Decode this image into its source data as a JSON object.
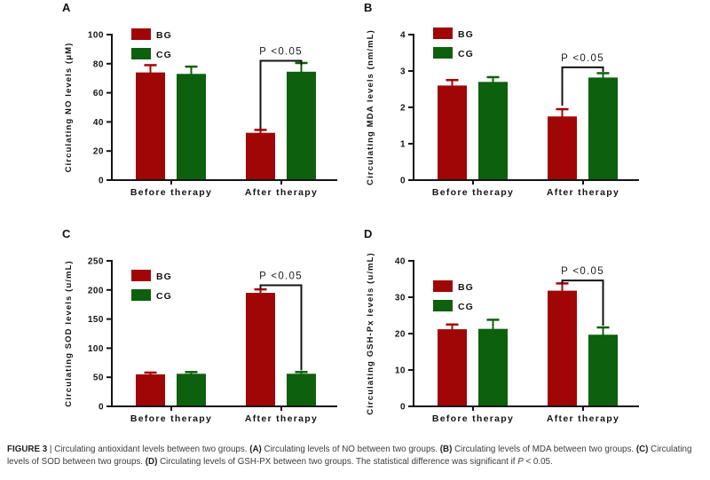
{
  "colors": {
    "bg_series": "#A00606",
    "cg_series": "#0D600D",
    "axis": "#141414"
  },
  "chart_data": [
    {
      "panel_letter": "A",
      "type": "bar",
      "title": "",
      "xlabel": "",
      "ylabel": "Circulating NO levels (μM)",
      "categories": [
        "Before therapy",
        "After therapy"
      ],
      "series": [
        {
          "name": "BG",
          "color": "#A00606",
          "values": [
            74,
            32.5
          ],
          "errors": [
            5,
            2
          ]
        },
        {
          "name": "CG",
          "color": "#0D600D",
          "values": [
            73,
            74.5
          ],
          "errors": [
            5,
            6
          ]
        }
      ],
      "ylim": [
        0,
        100
      ],
      "yticks": [
        0,
        20,
        40,
        60,
        80,
        100
      ],
      "grid": false,
      "legend_position": "top-left",
      "legend_y": 29,
      "significance": {
        "label": "P <0.05",
        "between": [
          "After therapy BG",
          "After therapy CG"
        ],
        "level": 82,
        "drop": 35,
        "side": "left"
      }
    },
    {
      "panel_letter": "B",
      "type": "bar",
      "title": "",
      "xlabel": "",
      "ylabel": "Circulating MDA levels (nm/mL)",
      "categories": [
        "Before therapy",
        "After therapy"
      ],
      "series": [
        {
          "name": "BG",
          "color": "#A00606",
          "values": [
            2.6,
            1.75
          ],
          "errors": [
            0.15,
            0.2
          ]
        },
        {
          "name": "CG",
          "color": "#0D600D",
          "values": [
            2.7,
            2.82
          ],
          "errors": [
            0.13,
            0.12
          ]
        }
      ],
      "ylim": [
        0,
        4
      ],
      "yticks": [
        0,
        1,
        2,
        3,
        4
      ],
      "grid": false,
      "legend_position": "top-left",
      "legend_y": 28,
      "significance": {
        "label": "P <0.05",
        "between": [
          "After therapy BG",
          "After therapy CG"
        ],
        "level": 3.1,
        "drop": 2.05,
        "side": "left"
      }
    },
    {
      "panel_letter": "C",
      "type": "bar",
      "title": "",
      "xlabel": "",
      "ylabel": "Circulating SOD levels (u/mL)",
      "categories": [
        "Before therapy",
        "After therapy"
      ],
      "series": [
        {
          "name": "BG",
          "color": "#A00606",
          "values": [
            55,
            195
          ],
          "errors": [
            3,
            6
          ]
        },
        {
          "name": "CG",
          "color": "#0D600D",
          "values": [
            56,
            56
          ],
          "errors": [
            3,
            3
          ]
        }
      ],
      "ylim": [
        0,
        250
      ],
      "yticks": [
        0,
        50,
        100,
        150,
        200,
        250
      ],
      "grid": false,
      "legend_position": "top-left",
      "legend_y": 46,
      "significance": {
        "label": "P <0.05",
        "between": [
          "After therapy BG",
          "After therapy CG"
        ],
        "level": 208,
        "drop": 62,
        "side": "right"
      }
    },
    {
      "panel_letter": "D",
      "type": "bar",
      "title": "",
      "xlabel": "",
      "ylabel": "Circulating GSH-Px levels (u/mL)",
      "categories": [
        "Before therapy",
        "After therapy"
      ],
      "series": [
        {
          "name": "BG",
          "color": "#A00606",
          "values": [
            21.2,
            31.8
          ],
          "errors": [
            1.3,
            2
          ]
        },
        {
          "name": "CG",
          "color": "#0D600D",
          "values": [
            21.3,
            19.7
          ],
          "errors": [
            2.5,
            2
          ]
        }
      ],
      "ylim": [
        0,
        40
      ],
      "yticks": [
        0,
        10,
        20,
        30,
        40
      ],
      "grid": false,
      "legend_position": "top-left",
      "legend_y": 58,
      "significance": {
        "label": "P <0.05",
        "between": [
          "After therapy BG",
          "After therapy CG"
        ],
        "level": 34.6,
        "drop": 22.2,
        "side": "right"
      }
    }
  ],
  "caption": {
    "figure_label": "FIGURE 3",
    "separator": " | ",
    "intro": "Circulating antioxidant levels between two groups. ",
    "parts": [
      {
        "label": "(A)",
        "text": " Circulating levels of NO between two groups. "
      },
      {
        "label": "(B)",
        "text": " Circulating levels of MDA between two groups. "
      },
      {
        "label": "(C)",
        "text": " Circulating levels of SOD between two groups. "
      },
      {
        "label": "(D)",
        "text": " Circulating levels of GSH-PX between two groups. "
      }
    ],
    "closing_prefix": "The statistical difference was significant if ",
    "p_symbol": "P",
    "closing_suffix": " < 0.05."
  }
}
